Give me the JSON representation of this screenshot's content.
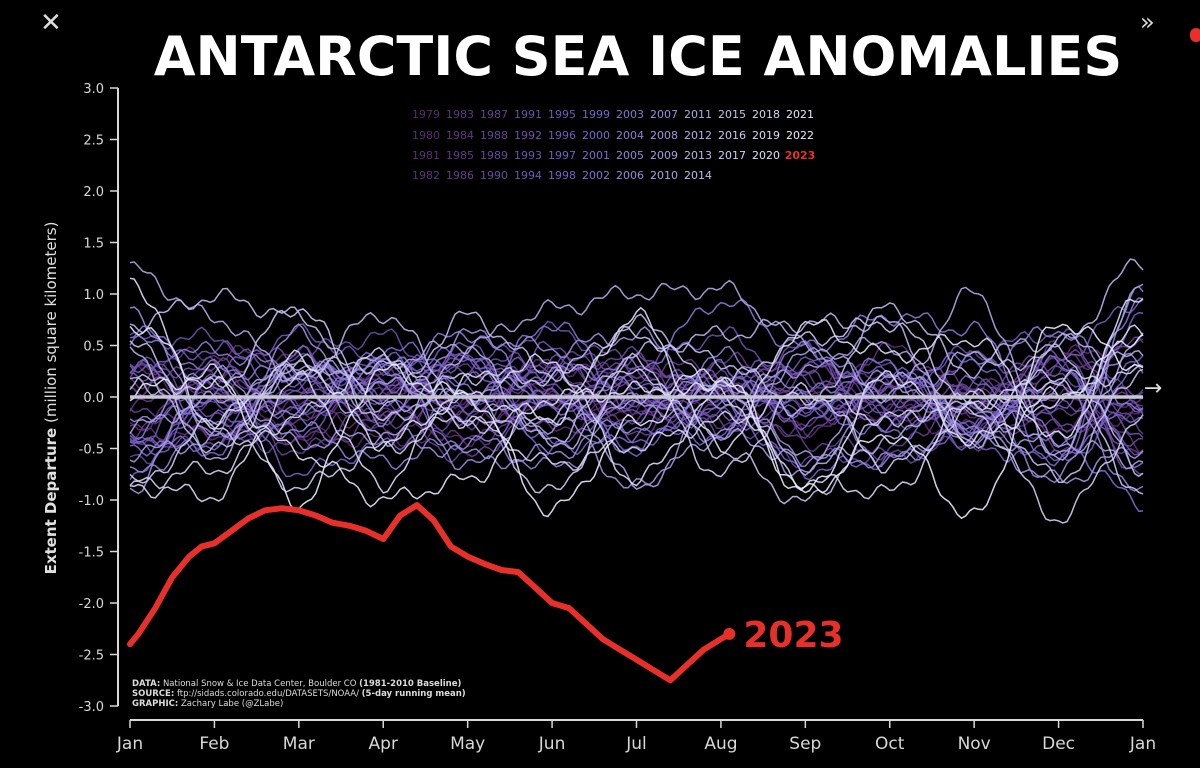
{
  "ui": {
    "close_glyph": "✕",
    "expand_glyph": "»",
    "next_glyph": "→"
  },
  "chart_data": {
    "type": "line",
    "title": "ANTARCTIC SEA ICE ANOMALIES",
    "ylabel_bold": "Extent Departure",
    "ylabel_rest": " (million square kilometers)",
    "xlabel": "",
    "ylim": [
      -3.0,
      3.0
    ],
    "yticks": [
      "3.0",
      "2.5",
      "2.0",
      "1.5",
      "1.0",
      "0.5",
      "0.0",
      "-0.5",
      "-1.0",
      "-1.5",
      "-2.0",
      "-2.5",
      "-3.0"
    ],
    "yticks_values": [
      3.0,
      2.5,
      2.0,
      1.5,
      1.0,
      0.5,
      0.0,
      -0.5,
      -1.0,
      -1.5,
      -2.0,
      -2.5,
      -3.0
    ],
    "months": [
      "Jan",
      "Feb",
      "Mar",
      "Apr",
      "May",
      "Jun",
      "Jul",
      "Aug",
      "Sep",
      "Oct",
      "Nov",
      "Dec",
      "Jan"
    ],
    "zero_line": true,
    "grid": false,
    "legend_placement": "top-center",
    "legend_rows": [
      [
        "1979",
        "1983",
        "1987",
        "1991",
        "1995",
        "1999",
        "2003",
        "2007",
        "2011",
        "2015",
        "2018",
        "2021"
      ],
      [
        "1980",
        "1984",
        "1988",
        "1992",
        "1996",
        "2000",
        "2004",
        "2008",
        "2012",
        "2016",
        "2019",
        "2022"
      ],
      [
        "1981",
        "1985",
        "1989",
        "1993",
        "1997",
        "2001",
        "2005",
        "2009",
        "2013",
        "2017",
        "2020",
        "2023"
      ],
      [
        "1982",
        "1986",
        "1990",
        "1994",
        "1998",
        "2002",
        "2006",
        "2010",
        "2014"
      ]
    ],
    "colors": {
      "old": "#5a2a6e",
      "mid": "#7b68d0",
      "new": "#e8ecff",
      "highlight": "#e8302a",
      "zero": "#c8c8d4"
    },
    "highlight_series": {
      "name": "2023",
      "label": "2023",
      "x": [
        0.0,
        0.1,
        0.3,
        0.5,
        0.7,
        0.85,
        1.0,
        1.2,
        1.4,
        1.6,
        1.8,
        2.0,
        2.2,
        2.4,
        2.6,
        2.8,
        3.0,
        3.2,
        3.4,
        3.6,
        3.8,
        4.0,
        4.2,
        4.4,
        4.6,
        4.8,
        5.0,
        5.2,
        5.4,
        5.6,
        5.8,
        6.0,
        6.2,
        6.4,
        6.6,
        6.8,
        7.0,
        7.1
      ],
      "y": [
        -2.4,
        -2.3,
        -2.05,
        -1.75,
        -1.55,
        -1.45,
        -1.42,
        -1.3,
        -1.18,
        -1.1,
        -1.08,
        -1.1,
        -1.15,
        -1.22,
        -1.25,
        -1.3,
        -1.38,
        -1.15,
        -1.05,
        -1.2,
        -1.45,
        -1.55,
        -1.62,
        -1.68,
        -1.7,
        -1.85,
        -2.0,
        -2.05,
        -2.2,
        -2.35,
        -2.45,
        -2.55,
        -2.65,
        -2.75,
        -2.6,
        -2.45,
        -2.35,
        -2.3
      ]
    },
    "background_series_count": 44,
    "source_lines": [
      {
        "label": "DATA:",
        "text": " National Snow & Ice Data Center, Boulder CO ",
        "bold": "(1981-2010 Baseline)"
      },
      {
        "label": "SOURCE:",
        "text": " ftp://sidads.colorado.edu/DATASETS/NOAA/ ",
        "bold": "(5-day running mean)"
      },
      {
        "label": "GRAPHIC:",
        "text": " Zachary Labe (@ZLabe)",
        "bold": ""
      }
    ]
  }
}
